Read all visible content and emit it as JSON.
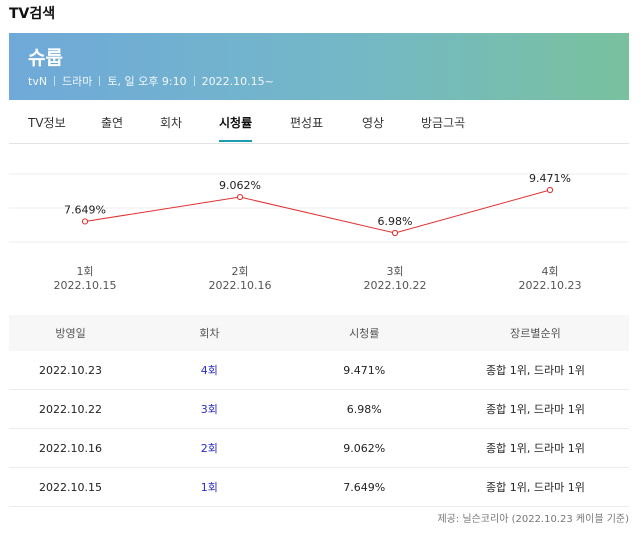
{
  "section_title": "TV검색",
  "program": {
    "title": "슈룹",
    "channel": "tvN",
    "genre": "드라마",
    "schedule": "토, 일 오후 9:10",
    "start": "2022.10.15~"
  },
  "tabs": [
    {
      "label": "TV정보",
      "active": false
    },
    {
      "label": "출연",
      "active": false
    },
    {
      "label": "회차",
      "active": false
    },
    {
      "label": "시청률",
      "active": true
    },
    {
      "label": "편성표",
      "active": false
    },
    {
      "label": "영상",
      "active": false
    },
    {
      "label": "방금그곡",
      "active": false
    }
  ],
  "chart_data": {
    "type": "line",
    "categories": [
      "1회",
      "2회",
      "3회",
      "4회"
    ],
    "dates": [
      "2022.10.15",
      "2022.10.16",
      "2022.10.22",
      "2022.10.23"
    ],
    "values": [
      7.649,
      9.062,
      6.98,
      9.471
    ],
    "value_labels": [
      "7.649%",
      "9.062%",
      "6.98%",
      "9.471%"
    ],
    "line_color": "#e03030",
    "grid": true
  },
  "table": {
    "headers": [
      "방영일",
      "회차",
      "시청률",
      "장르별순위"
    ],
    "rows": [
      [
        "2022.10.23",
        "4회",
        "9.471%",
        "종합 1위, 드라마 1위"
      ],
      [
        "2022.10.22",
        "3회",
        "6.98%",
        "종합 1위, 드라마 1위"
      ],
      [
        "2022.10.16",
        "2회",
        "9.062%",
        "종합 1위, 드라마 1위"
      ],
      [
        "2022.10.15",
        "1회",
        "7.649%",
        "종합 1위, 드라마 1위"
      ]
    ]
  },
  "source": "제공: 닐슨코리아 (2022.10.23 케이블 기준)"
}
